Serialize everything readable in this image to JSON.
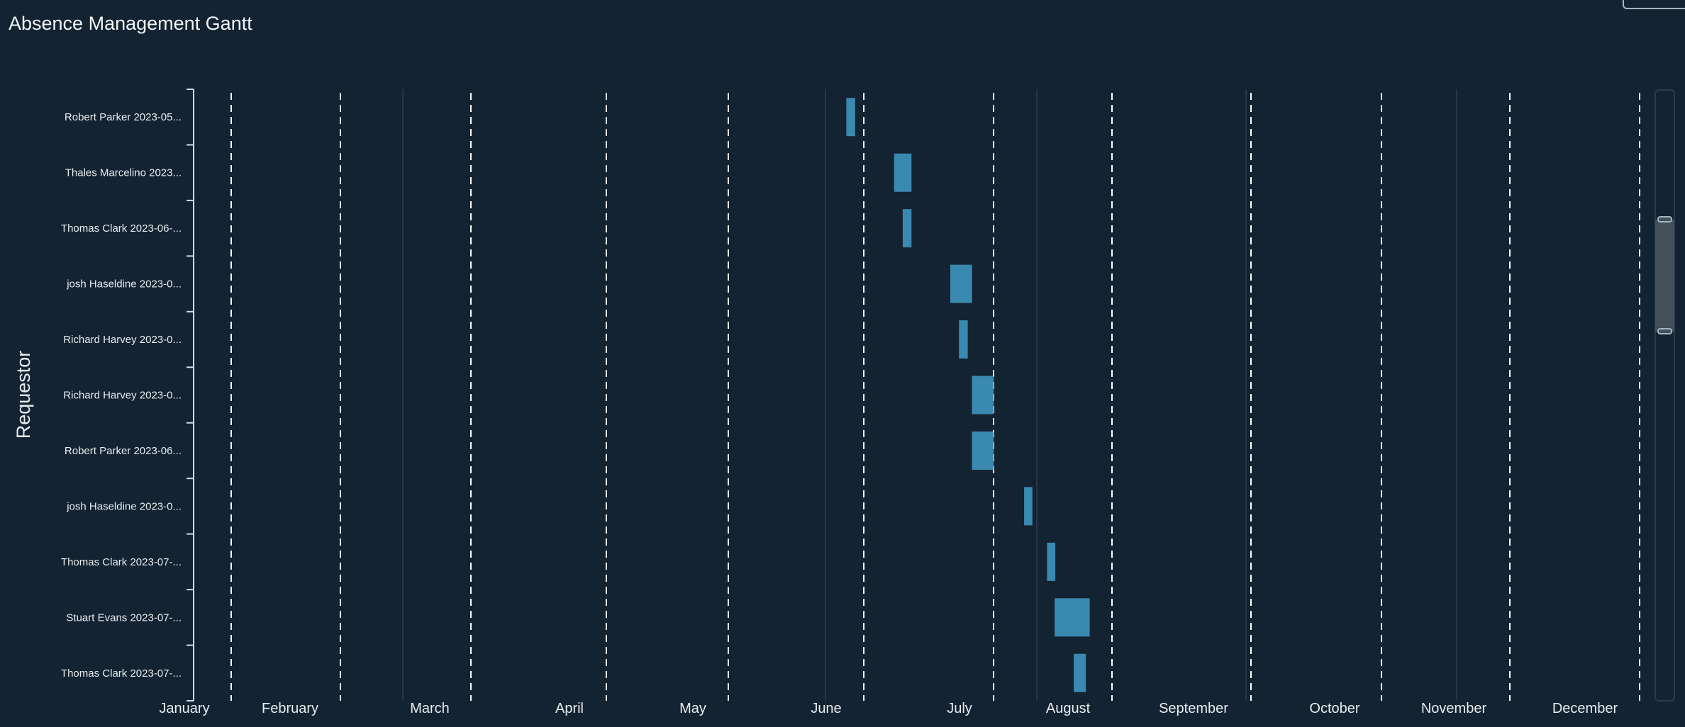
{
  "title": "Absence Management Gantt",
  "chart_data": {
    "type": "gantt",
    "title": "Absence Management Gantt",
    "ylabel": "Requestor",
    "xlabel": "",
    "x_ticks": [
      "January",
      "February",
      "March",
      "April",
      "May",
      "June",
      "July",
      "August",
      "September",
      "October",
      "November",
      "December"
    ],
    "bar_color": "#3a89b0",
    "reference_lines": "dashed white line at each month start",
    "rows": [
      {
        "label": "Robert Parker 2023-05...",
        "start": "2023-05-28",
        "end": "2023-05-29"
      },
      {
        "label": "Thales Marcelino 2023...",
        "start": "2023-06-08",
        "end": "2023-06-11"
      },
      {
        "label": "Thomas Clark 2023-06-...",
        "start": "2023-06-10",
        "end": "2023-06-11"
      },
      {
        "label": "josh Haseldine 2023-0...",
        "start": "2023-06-21",
        "end": "2023-06-25"
      },
      {
        "label": "Richard Harvey 2023-0...",
        "start": "2023-06-23",
        "end": "2023-06-24"
      },
      {
        "label": "Richard Harvey 2023-0...",
        "start": "2023-06-26",
        "end": "2023-06-30"
      },
      {
        "label": "Robert Parker 2023-06...",
        "start": "2023-06-26",
        "end": "2023-06-30"
      },
      {
        "label": "josh Haseldine 2023-0...",
        "start": "2023-07-09",
        "end": "2023-07-10"
      },
      {
        "label": "Thomas Clark 2023-07-...",
        "start": "2023-07-15",
        "end": "2023-07-16"
      },
      {
        "label": "Stuart Evans 2023-07-...",
        "start": "2023-07-17",
        "end": "2023-07-25"
      },
      {
        "label": "Thomas Clark 2023-07-...",
        "start": "2023-07-22",
        "end": "2023-07-24"
      }
    ]
  },
  "scrollbar": {
    "visible_fraction": 0.18
  }
}
